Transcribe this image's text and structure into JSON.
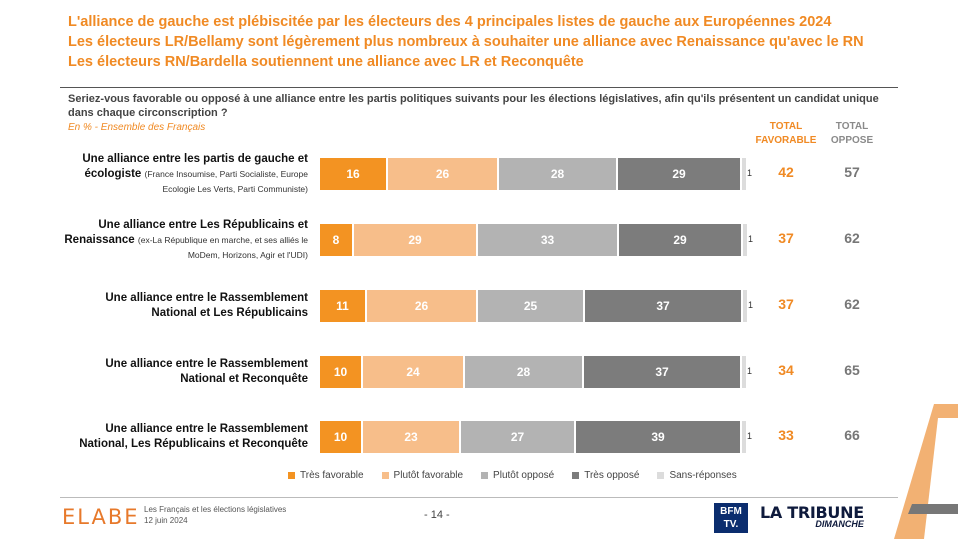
{
  "headline": [
    "L'alliance de gauche est plébiscitée par les électeurs des 4 principales listes de gauche aux Européennes 2024",
    "Les électeurs LR/Bellamy sont légèrement plus nombreux à souhaiter une alliance avec Renaissance qu'avec le RN",
    "Les électeurs RN/Bardella soutiennent une alliance avec LR et Reconquête"
  ],
  "question": "Seriez-vous favorable ou opposé à une alliance entre les partis politiques suivants pour les élections législatives, afin qu'ils présentent un candidat unique dans chaque circonscription ?",
  "subtitle": "En % - Ensemble des Français",
  "columns": {
    "favorable_line1": "TOTAL",
    "favorable_line2": "FAVORABLE",
    "oppose_line1": "TOTAL",
    "oppose_line2": "OPPOSE"
  },
  "colors": {
    "tres_favorable": "#f39322",
    "plutot_favorable": "#f7be8a",
    "plutot_oppose": "#b3b3b3",
    "tres_oppose": "#7c7c7c",
    "sans_reponses": "#dcdcdc",
    "accent": "#f08a24"
  },
  "chart_data": {
    "type": "bar",
    "orientation": "horizontal-stacked",
    "unit": "%",
    "series_names": [
      "Très favorable",
      "Plutôt favorable",
      "Plutôt opposé",
      "Très opposé",
      "Sans-réponses"
    ],
    "rows": [
      {
        "label_main": "Une alliance entre les partis de gauche et écologiste",
        "label_detail": "(France Insoumise, Parti Socialiste, Europe Ecologie Les Verts, Parti Communiste)",
        "values": [
          16,
          26,
          28,
          29,
          1
        ],
        "total_favorable": 42,
        "total_oppose": 57
      },
      {
        "label_main": "Une alliance entre Les Républicains et Renaissance",
        "label_detail": "(ex-La République en marche, et ses alliés le MoDem, Horizons, Agir et l'UDI)",
        "values": [
          8,
          29,
          33,
          29,
          1
        ],
        "total_favorable": 37,
        "total_oppose": 62
      },
      {
        "label_main": "Une alliance entre le Rassemblement National et Les Républicains",
        "label_detail": "",
        "values": [
          11,
          26,
          25,
          37,
          1
        ],
        "total_favorable": 37,
        "total_oppose": 62
      },
      {
        "label_main": "Une alliance entre le Rassemblement National et Reconquête",
        "label_detail": "",
        "values": [
          10,
          24,
          28,
          37,
          1
        ],
        "total_favorable": 34,
        "total_oppose": 65
      },
      {
        "label_main": "Une alliance entre le Rassemblement National, Les Républicains et Reconquête",
        "label_detail": "",
        "values": [
          10,
          23,
          27,
          39,
          1
        ],
        "total_favorable": 33,
        "total_oppose": 66
      }
    ],
    "legend_position": "bottom"
  },
  "footer": {
    "logo": "ELABE",
    "line1": "Les Français et les élections législatives",
    "line2": "12 juin 2024",
    "page": "- 14 -",
    "bfm_line1": "BFM",
    "bfm_line2": "TV.",
    "tribune_title": "LA TRIBUNE",
    "tribune_sub": "DIMANCHE"
  }
}
